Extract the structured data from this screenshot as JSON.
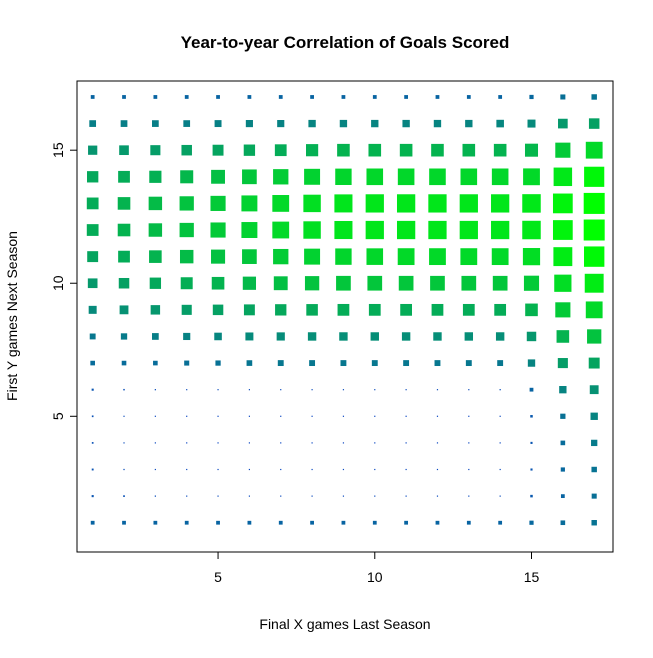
{
  "chart_data": {
    "type": "heatmap",
    "title": "Year-to-year Correlation of Goals Scored",
    "xlabel": "Final X games Last Season",
    "ylabel": "First Y games Next Season",
    "xlim": [
      0.5,
      17.6
    ],
    "ylim": [
      -0.1,
      17.6
    ],
    "xticks": [
      5,
      10,
      15
    ],
    "yticks": [
      5,
      10,
      15
    ],
    "x": [
      1,
      2,
      3,
      4,
      5,
      6,
      7,
      8,
      9,
      10,
      11,
      12,
      13,
      14,
      15,
      16,
      17
    ],
    "y": [
      1,
      2,
      3,
      4,
      5,
      6,
      7,
      8,
      9,
      10,
      11,
      12,
      13,
      14,
      15,
      16,
      17
    ],
    "z": [
      [
        0.18,
        0.18,
        0.18,
        0.18,
        0.18,
        0.18,
        0.18,
        0.18,
        0.18,
        0.18,
        0.18,
        0.18,
        0.18,
        0.18,
        0.2,
        0.22,
        0.26
      ],
      [
        0.1,
        0.08,
        0.06,
        0.05,
        0.04,
        0.04,
        0.04,
        0.04,
        0.04,
        0.04,
        0.04,
        0.04,
        0.04,
        0.05,
        0.12,
        0.18,
        0.24
      ],
      [
        0.09,
        0.06,
        0.04,
        0.03,
        0.03,
        0.03,
        0.03,
        0.03,
        0.03,
        0.03,
        0.03,
        0.03,
        0.03,
        0.04,
        0.1,
        0.2,
        0.26
      ],
      [
        0.08,
        0.05,
        0.03,
        0.02,
        0.02,
        0.02,
        0.02,
        0.02,
        0.02,
        0.02,
        0.02,
        0.02,
        0.02,
        0.03,
        0.1,
        0.22,
        0.3
      ],
      [
        0.08,
        0.05,
        0.03,
        0.02,
        0.02,
        0.02,
        0.02,
        0.02,
        0.02,
        0.02,
        0.02,
        0.02,
        0.02,
        0.03,
        0.12,
        0.25,
        0.35
      ],
      [
        0.1,
        0.07,
        0.06,
        0.05,
        0.05,
        0.05,
        0.05,
        0.05,
        0.05,
        0.05,
        0.05,
        0.05,
        0.05,
        0.06,
        0.18,
        0.35,
        0.42
      ],
      [
        0.22,
        0.22,
        0.22,
        0.24,
        0.25,
        0.27,
        0.28,
        0.28,
        0.28,
        0.28,
        0.28,
        0.28,
        0.28,
        0.28,
        0.35,
        0.48,
        0.52
      ],
      [
        0.28,
        0.3,
        0.32,
        0.34,
        0.36,
        0.38,
        0.39,
        0.4,
        0.4,
        0.4,
        0.4,
        0.4,
        0.4,
        0.4,
        0.45,
        0.6,
        0.68
      ],
      [
        0.38,
        0.42,
        0.45,
        0.48,
        0.5,
        0.52,
        0.54,
        0.55,
        0.56,
        0.56,
        0.56,
        0.56,
        0.56,
        0.56,
        0.6,
        0.72,
        0.8
      ],
      [
        0.46,
        0.5,
        0.54,
        0.57,
        0.6,
        0.63,
        0.66,
        0.68,
        0.7,
        0.7,
        0.7,
        0.7,
        0.7,
        0.7,
        0.72,
        0.82,
        0.9
      ],
      [
        0.52,
        0.56,
        0.6,
        0.64,
        0.67,
        0.7,
        0.73,
        0.76,
        0.78,
        0.79,
        0.8,
        0.8,
        0.8,
        0.8,
        0.82,
        0.9,
        0.97
      ],
      [
        0.56,
        0.6,
        0.64,
        0.68,
        0.72,
        0.76,
        0.8,
        0.83,
        0.86,
        0.87,
        0.87,
        0.87,
        0.87,
        0.87,
        0.88,
        0.94,
        1.0
      ],
      [
        0.56,
        0.6,
        0.64,
        0.68,
        0.72,
        0.76,
        0.8,
        0.83,
        0.86,
        0.87,
        0.87,
        0.87,
        0.87,
        0.87,
        0.88,
        0.94,
        1.0
      ],
      [
        0.54,
        0.56,
        0.58,
        0.62,
        0.66,
        0.7,
        0.73,
        0.76,
        0.78,
        0.79,
        0.79,
        0.79,
        0.79,
        0.79,
        0.8,
        0.88,
        0.96
      ],
      [
        0.44,
        0.46,
        0.48,
        0.5,
        0.52,
        0.54,
        0.56,
        0.58,
        0.6,
        0.6,
        0.6,
        0.6,
        0.6,
        0.6,
        0.62,
        0.72,
        0.8
      ],
      [
        0.32,
        0.32,
        0.32,
        0.32,
        0.33,
        0.34,
        0.34,
        0.35,
        0.35,
        0.35,
        0.35,
        0.35,
        0.35,
        0.36,
        0.38,
        0.46,
        0.5
      ],
      [
        0.18,
        0.18,
        0.18,
        0.18,
        0.18,
        0.18,
        0.18,
        0.18,
        0.18,
        0.18,
        0.18,
        0.18,
        0.18,
        0.18,
        0.2,
        0.24,
        0.26
      ]
    ],
    "color_low": "#0a42c6",
    "color_high": "#00ff00",
    "grid": false,
    "legend": "none"
  }
}
